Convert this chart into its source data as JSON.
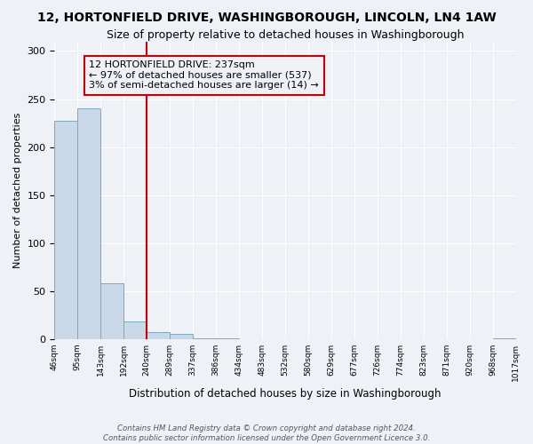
{
  "title": "12, HORTONFIELD DRIVE, WASHINGBOROUGH, LINCOLN, LN4 1AW",
  "subtitle": "Size of property relative to detached houses in Washingborough",
  "xlabel": "Distribution of detached houses by size in Washingborough",
  "ylabel": "Number of detached properties",
  "bar_values": [
    227,
    240,
    58,
    18,
    7,
    5,
    1,
    1,
    0,
    0,
    0,
    0,
    0,
    0,
    0,
    0,
    0,
    0,
    0,
    1
  ],
  "bin_labels": [
    "46sqm",
    "95sqm",
    "143sqm",
    "192sqm",
    "240sqm",
    "289sqm",
    "337sqm",
    "386sqm",
    "434sqm",
    "483sqm",
    "532sqm",
    "580sqm",
    "629sqm",
    "677sqm",
    "726sqm",
    "774sqm",
    "823sqm",
    "871sqm",
    "920sqm",
    "968sqm",
    "1017sqm"
  ],
  "bar_color": "#c8d8e8",
  "bar_edge_color": "#7aaabb",
  "vline_x": 4.0,
  "vline_color": "#cc0000",
  "annotation_text": "12 HORTONFIELD DRIVE: 237sqm\n← 97% of detached houses are smaller (537)\n3% of semi-detached houses are larger (14) →",
  "annotation_box_color": "#cc0000",
  "ylim": [
    0,
    310
  ],
  "yticks": [
    0,
    50,
    100,
    150,
    200,
    250,
    300
  ],
  "background_color": "#eef2f7",
  "footer_line1": "Contains HM Land Registry data © Crown copyright and database right 2024.",
  "footer_line2": "Contains public sector information licensed under the Open Government Licence 3.0.",
  "grid_color": "#ffffff",
  "title_fontsize": 10,
  "subtitle_fontsize": 9,
  "annot_fontsize": 8
}
